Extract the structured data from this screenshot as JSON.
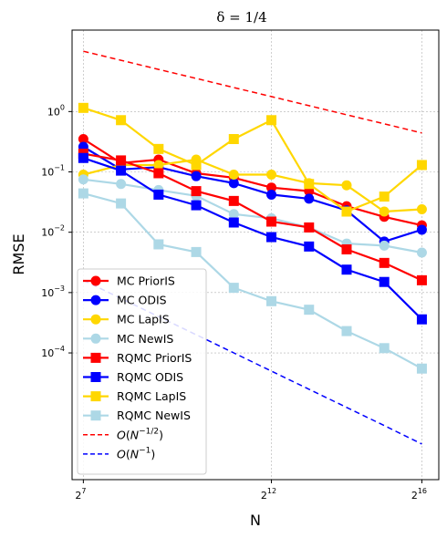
{
  "chart_data": {
    "type": "line",
    "title": "δ = 1/4",
    "xlabel": "N",
    "ylabel": "RMSE",
    "xscale": "log2",
    "yscale": "log10",
    "xlim_log2": [
      6.7,
      16.45
    ],
    "ylim_log10": [
      -6.1,
      1.35
    ],
    "grid": true,
    "legend_position": "lower-left",
    "x_ticks": [
      {
        "base": "2",
        "exp": "7"
      },
      {
        "base": "2",
        "exp": "12"
      },
      {
        "base": "2",
        "exp": "16"
      }
    ],
    "y_ticks": [
      {
        "base": "10",
        "exp": "0"
      },
      {
        "base": "10",
        "exp": "−1"
      },
      {
        "base": "10",
        "exp": "−2"
      },
      {
        "base": "10",
        "exp": "−3"
      },
      {
        "base": "10",
        "exp": "−4"
      }
    ],
    "x": [
      128,
      256,
      512,
      1024,
      2048,
      4096,
      8192,
      16384,
      32768,
      65536
    ],
    "series": [
      {
        "name": "MC PriorIS",
        "color": "#ff0000",
        "marker": "circle",
        "values": [
          0.35,
          0.14,
          0.16,
          0.095,
          0.08,
          0.055,
          0.048,
          0.027,
          0.018,
          0.013
        ]
      },
      {
        "name": "MC ODIS",
        "color": "#0000ff",
        "marker": "circle",
        "values": [
          0.26,
          0.11,
          0.12,
          0.085,
          0.065,
          0.042,
          0.036,
          0.023,
          0.007,
          0.011
        ]
      },
      {
        "name": "MC LapIS",
        "color": "#ffd700",
        "marker": "circle",
        "values": [
          0.09,
          0.13,
          0.13,
          0.16,
          0.09,
          0.09,
          0.065,
          0.06,
          0.022,
          0.024
        ]
      },
      {
        "name": "MC NewIS",
        "color": "#add8e6",
        "marker": "circle",
        "values": [
          0.075,
          0.063,
          0.05,
          0.04,
          0.02,
          0.017,
          0.012,
          0.0065,
          0.006,
          0.0046
        ]
      },
      {
        "name": "RQMC PriorIS",
        "color": "#ff0000",
        "marker": "square",
        "values": [
          0.2,
          0.155,
          0.095,
          0.048,
          0.033,
          0.015,
          0.012,
          0.0052,
          0.0031,
          0.0016
        ]
      },
      {
        "name": "RQMC ODIS",
        "color": "#0000ff",
        "marker": "square",
        "values": [
          0.17,
          0.105,
          0.042,
          0.028,
          0.0145,
          0.0083,
          0.0058,
          0.0024,
          0.0015,
          0.00036
        ]
      },
      {
        "name": "RQMC LapIS",
        "color": "#ffd700",
        "marker": "square",
        "values": [
          1.15,
          0.72,
          0.24,
          0.13,
          0.35,
          0.72,
          0.063,
          0.022,
          0.039,
          0.13
        ]
      },
      {
        "name": "RQMC NewIS",
        "color": "#add8e6",
        "marker": "square",
        "values": [
          0.044,
          0.03,
          0.0063,
          0.0047,
          0.0012,
          0.00072,
          0.00052,
          0.00023,
          0.00012,
          5.5e-05
        ]
      },
      {
        "name": "O(N^{-1/2})",
        "color": "#ff0000",
        "dashed": true,
        "values": [
          10.0,
          7.07,
          5.0,
          3.54,
          2.5,
          1.77,
          1.25,
          0.884,
          0.625,
          0.442
        ]
      },
      {
        "name": "O(N^{-1})",
        "color": "#0000ff",
        "dashed": true,
        "values": [
          0.0016,
          0.0008,
          0.0004,
          0.0002,
          0.0001,
          5e-05,
          2.5e-05,
          1.25e-05,
          6.25e-06,
          3.1e-06
        ]
      }
    ]
  }
}
